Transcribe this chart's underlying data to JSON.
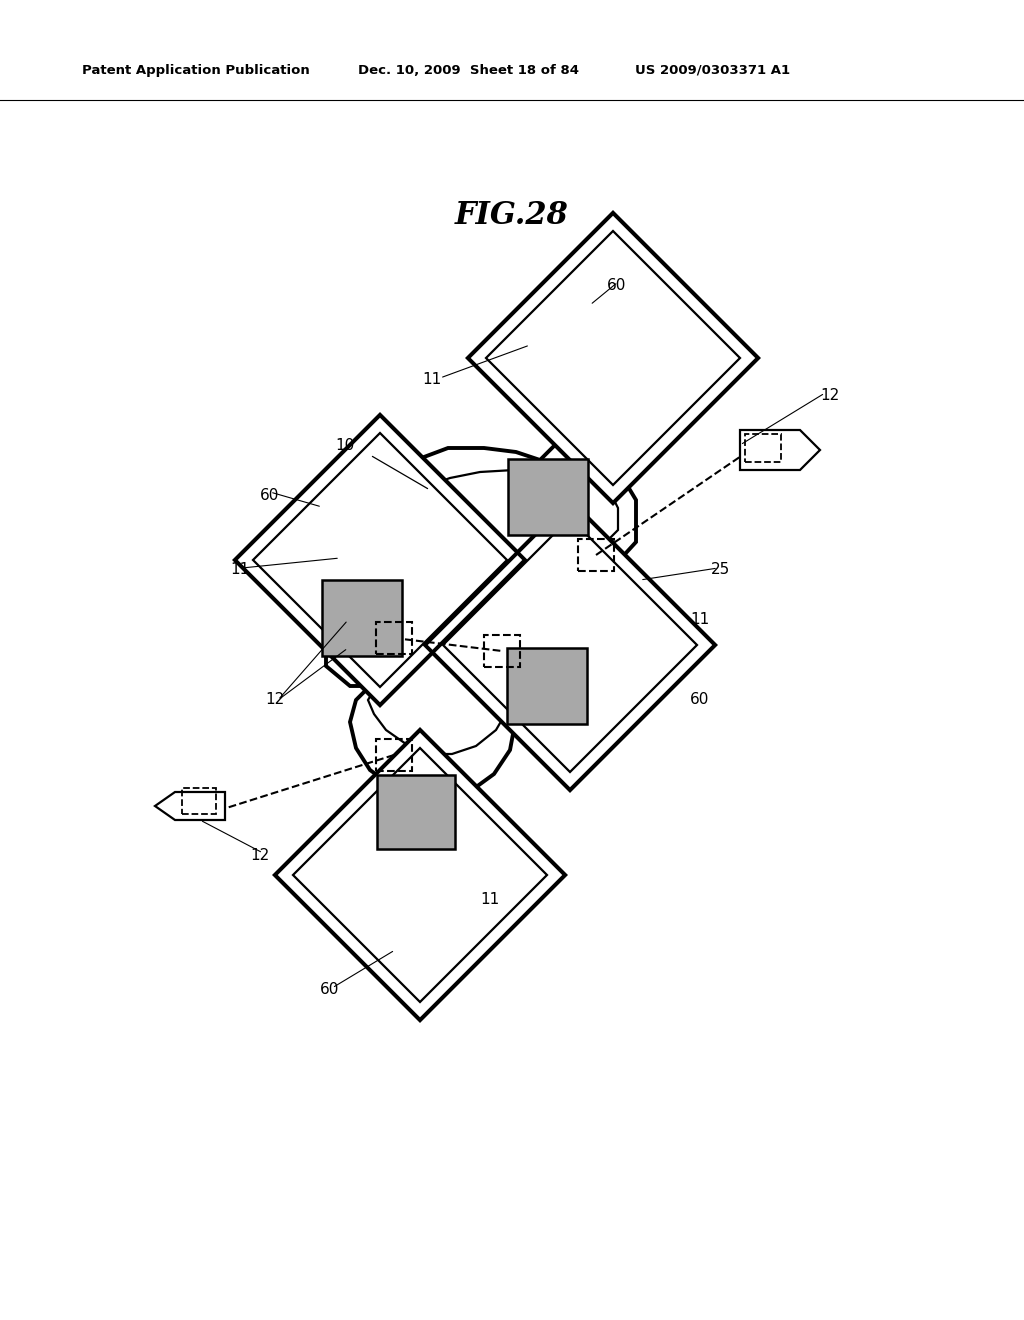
{
  "title": "FIG.28",
  "header_left": "Patent Application Publication",
  "header_mid": "Dec. 10, 2009  Sheet 18 of 84",
  "header_right": "US 2009/0303371 A1",
  "bg_color": "#ffffff",
  "line_color": "#000000",
  "gray_fill": "#a8a8a8",
  "label_fontsize": 11,
  "title_fontsize": 22,
  "lw_thick": 2.8,
  "lw_thin": 1.6,
  "lw_dashed": 1.5
}
